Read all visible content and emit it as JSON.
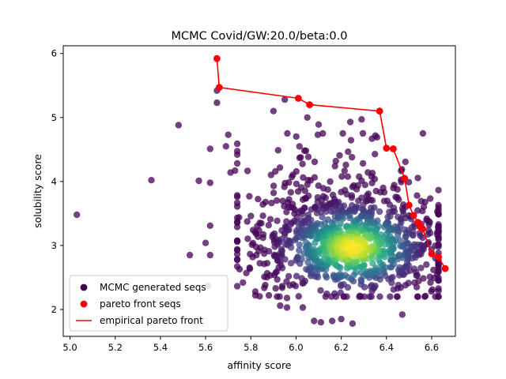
{
  "chart_data": {
    "type": "scatter",
    "title": "MCMC Covid/GW:20.0/beta:0.0",
    "xlabel": "affinity score",
    "ylabel": "solubility score",
    "xlim": [
      4.97,
      6.705
    ],
    "ylim": [
      1.58,
      6.12
    ],
    "xticks": [
      5.0,
      5.2,
      5.4,
      5.6,
      5.8,
      6.0,
      6.2,
      6.4,
      6.6
    ],
    "yticks": [
      2,
      3,
      4,
      5,
      6
    ],
    "xtick_labels": [
      "5.0",
      "5.2",
      "5.4",
      "5.6",
      "5.8",
      "6.0",
      "6.2",
      "6.4",
      "6.6"
    ],
    "ytick_labels": [
      "2",
      "3",
      "4",
      "5",
      "6"
    ],
    "grid": false,
    "legend_position": "lower-left",
    "colors": {
      "pareto": "#ff0000",
      "mcmc_low_density": "#440154",
      "mcmc_high_density": "#fde725"
    },
    "legend": [
      {
        "label": "MCMC generated seqs",
        "marker": "dot",
        "color": "#440154"
      },
      {
        "label": "pareto front seqs",
        "marker": "dot",
        "color": "#ff0000"
      },
      {
        "label": "empirical pareto front",
        "marker": "line",
        "color": "#ff0000"
      }
    ],
    "series": [
      {
        "name": "MCMC generated seqs",
        "colormap": "viridis (point density)",
        "points": [
          [
            5.03,
            3.48
          ],
          [
            5.36,
            4.02
          ],
          [
            5.48,
            4.88
          ],
          [
            5.53,
            2.85
          ],
          [
            5.57,
            4.01
          ],
          [
            5.6,
            3.04
          ],
          [
            5.61,
            2.37
          ],
          [
            5.62,
            2.85
          ],
          [
            5.62,
            4.51
          ],
          [
            5.62,
            3.98
          ],
          [
            5.62,
            3.31
          ],
          [
            5.65,
            5.42
          ],
          [
            5.65,
            5.23
          ],
          [
            5.69,
            4.55
          ],
          [
            5.7,
            4.73
          ],
          [
            5.71,
            4.14
          ],
          [
            5.73,
            4.17
          ],
          [
            5.74,
            3.29
          ],
          [
            5.75,
            2.63
          ],
          [
            5.78,
            2.57
          ],
          [
            5.8,
            3.46
          ],
          [
            5.81,
            3.24
          ],
          [
            5.82,
            2.28
          ],
          [
            5.82,
            2.22
          ],
          [
            5.86,
            2.51
          ],
          [
            5.88,
            2.22
          ],
          [
            5.9,
            5.1
          ],
          [
            5.91,
            2.33
          ],
          [
            5.93,
            2.06
          ],
          [
            5.95,
            5.28
          ],
          [
            5.96,
            2.18
          ],
          [
            5.96,
            2.03
          ],
          [
            6.03,
            2.03
          ],
          [
            6.08,
            1.82
          ],
          [
            6.11,
            1.8
          ],
          [
            6.16,
            1.82
          ],
          [
            6.2,
            1.85
          ],
          [
            6.25,
            1.78
          ],
          [
            6.47,
            1.92
          ],
          [
            6.29,
            4.97
          ],
          [
            6.24,
            4.93
          ],
          [
            6.05,
            5.0
          ],
          [
            6.1,
            4.89
          ]
        ],
        "cluster": {
          "center": [
            6.25,
            2.97
          ],
          "x_spread": 0.2,
          "y_spread": 0.38,
          "approx_points": 1050
        }
      },
      {
        "name": "pareto front seqs",
        "points": [
          [
            5.65,
            5.92
          ],
          [
            5.66,
            5.47
          ],
          [
            6.01,
            5.3
          ],
          [
            6.06,
            5.2
          ],
          [
            6.37,
            5.1
          ],
          [
            6.4,
            4.52
          ],
          [
            6.43,
            4.51
          ],
          [
            6.48,
            4.05
          ],
          [
            6.5,
            3.63
          ],
          [
            6.52,
            3.47
          ],
          [
            6.54,
            3.36
          ],
          [
            6.55,
            3.29
          ],
          [
            6.56,
            3.26
          ],
          [
            6.6,
            2.87
          ],
          [
            6.63,
            2.82
          ],
          [
            6.66,
            2.64
          ]
        ]
      },
      {
        "name": "empirical pareto front",
        "points": [
          [
            5.65,
            5.92
          ],
          [
            5.66,
            5.47
          ],
          [
            6.01,
            5.3
          ],
          [
            6.06,
            5.2
          ],
          [
            6.37,
            5.1
          ],
          [
            6.4,
            4.52
          ],
          [
            6.43,
            4.51
          ],
          [
            6.48,
            4.05
          ],
          [
            6.5,
            3.63
          ],
          [
            6.52,
            3.47
          ],
          [
            6.54,
            3.36
          ],
          [
            6.55,
            3.29
          ],
          [
            6.56,
            3.26
          ],
          [
            6.6,
            2.87
          ],
          [
            6.63,
            2.82
          ],
          [
            6.66,
            2.64
          ]
        ]
      }
    ]
  }
}
